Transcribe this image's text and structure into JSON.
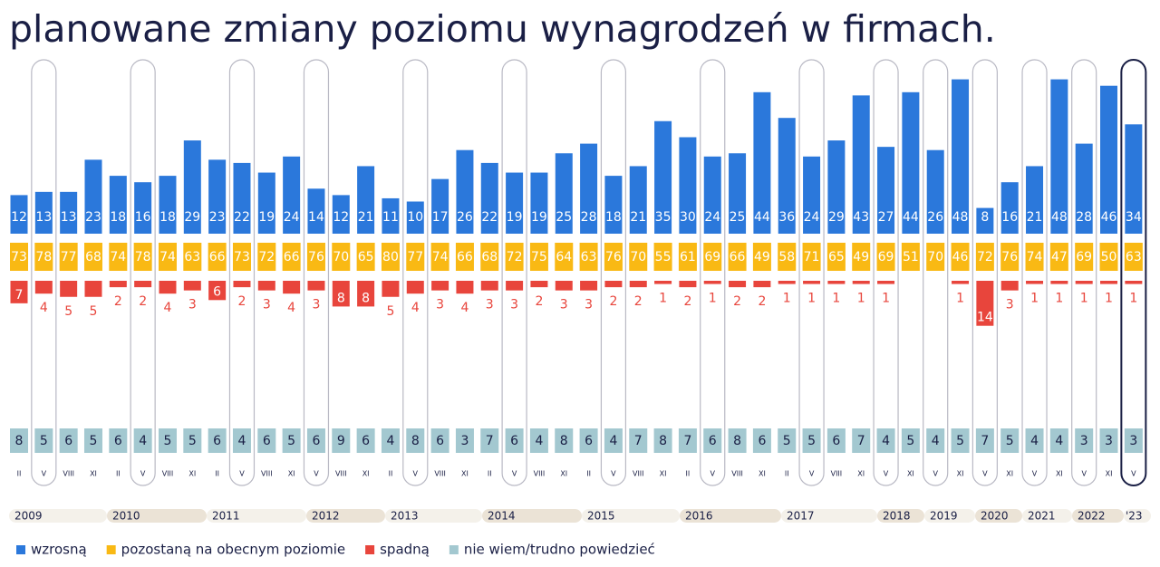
{
  "chart_data": {
    "type": "panel-bar",
    "title": "planowane zmiany poziomu wynagrodzeń w firmach.",
    "categories": [
      "II",
      "V",
      "VIII",
      "XI",
      "II",
      "V",
      "VIII",
      "XI",
      "II",
      "V",
      "VIII",
      "XI",
      "V",
      "VIII",
      "XI",
      "II",
      "V",
      "VIII",
      "XI",
      "II",
      "V",
      "VIII",
      "XI",
      "II",
      "V",
      "VIII",
      "XI",
      "II",
      "V",
      "VIII",
      "XI",
      "II",
      "V",
      "VIII",
      "XI",
      "V",
      "XI",
      "V",
      "XI",
      "V",
      "XI",
      "V",
      "XI",
      "V",
      "XI",
      "V"
    ],
    "years": [
      "2009",
      "2010",
      "2011",
      "2012",
      "2013",
      "2014",
      "2015",
      "2016",
      "2017",
      "2018",
      "2019",
      "2020",
      "2021",
      "2022",
      "'23"
    ],
    "series": [
      {
        "name": "wzrosną",
        "color": "#2b78db",
        "values": [
          12,
          13,
          13,
          23,
          18,
          16,
          18,
          29,
          23,
          22,
          19,
          24,
          14,
          12,
          21,
          11,
          10,
          17,
          26,
          22,
          19,
          19,
          25,
          28,
          18,
          21,
          35,
          30,
          24,
          25,
          44,
          36,
          24,
          29,
          43,
          27,
          44,
          26,
          48,
          8,
          16,
          21,
          48,
          28,
          46,
          34
        ]
      },
      {
        "name": "pozostaną na obecnym poziomie",
        "color": "#f9b914",
        "values": [
          73,
          78,
          77,
          68,
          74,
          78,
          74,
          63,
          66,
          73,
          72,
          66,
          76,
          70,
          65,
          80,
          77,
          74,
          66,
          68,
          72,
          75,
          64,
          63,
          76,
          70,
          55,
          61,
          69,
          66,
          49,
          58,
          71,
          65,
          49,
          69,
          51,
          70,
          46,
          72,
          76,
          74,
          47,
          69,
          50,
          63
        ]
      },
      {
        "name": "spadną",
        "color": "#e8453c",
        "values": [
          7,
          4,
          5,
          5,
          2,
          2,
          4,
          3,
          6,
          2,
          3,
          4,
          3,
          8,
          8,
          5,
          4,
          3,
          4,
          3,
          3,
          2,
          3,
          3,
          2,
          2,
          1,
          2,
          1,
          2,
          2,
          1,
          1,
          1,
          1,
          1,
          null,
          null,
          1,
          14,
          3,
          1,
          1,
          1,
          1,
          1
        ]
      },
      {
        "name": "nie wiem/trudno powiedzieć",
        "color": "#a3c8d0",
        "values": [
          8,
          5,
          6,
          5,
          6,
          4,
          5,
          5,
          6,
          4,
          6,
          5,
          6,
          9,
          6,
          4,
          8,
          6,
          3,
          7,
          6,
          4,
          8,
          6,
          4,
          7,
          8,
          7,
          6,
          8,
          6,
          5,
          5,
          6,
          7,
          4,
          5,
          4,
          5,
          7,
          5,
          4,
          4,
          3,
          3,
          3
        ]
      }
    ]
  }
}
